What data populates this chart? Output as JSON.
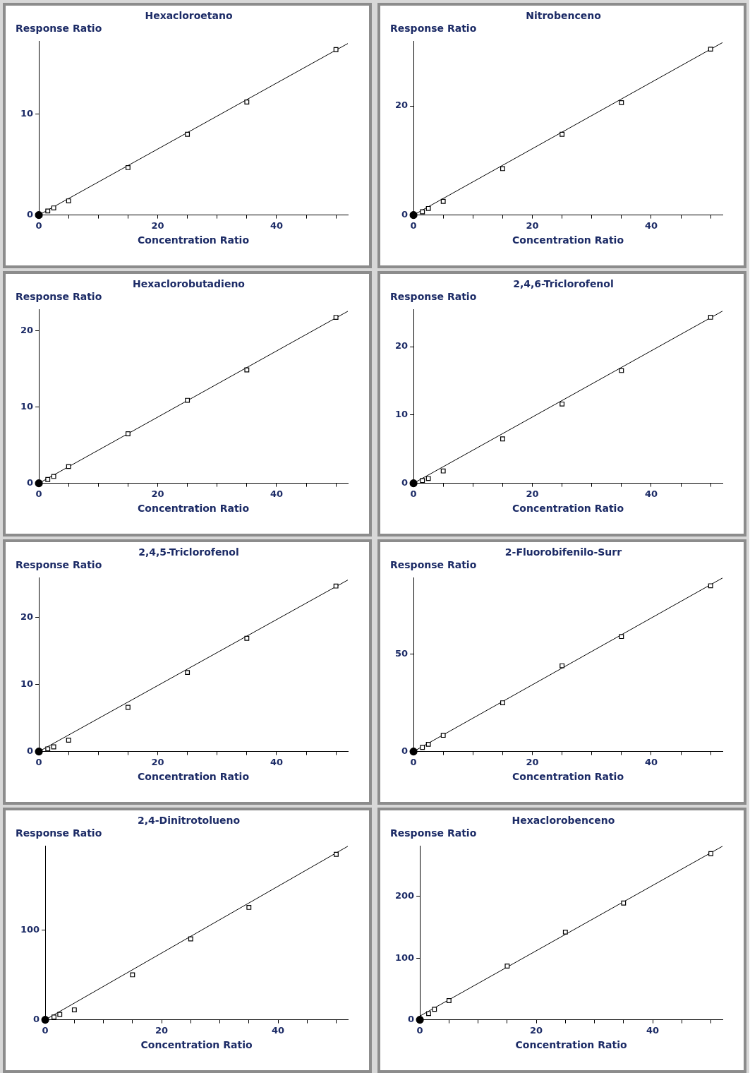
{
  "chart_data": [
    {
      "type": "scatter",
      "title": "Hexacloroetano",
      "xlabel": "Concentration Ratio",
      "ylabel": "Response Ratio",
      "xlim": [
        0,
        52
      ],
      "ylim": [
        0,
        17.2
      ],
      "xticks": [
        0,
        {
          "value": 5,
          "label": null
        },
        {
          "value": 10,
          "label": null
        },
        {
          "value": 15,
          "label": null
        },
        20,
        {
          "value": 25,
          "label": null
        },
        {
          "value": 30,
          "label": null
        },
        {
          "value": 35,
          "label": null
        },
        40,
        {
          "value": 45,
          "label": null
        },
        {
          "value": 50,
          "label": null
        }
      ],
      "yticks": [
        0,
        10
      ],
      "series": [
        {
          "type": "scatter",
          "marker": "square",
          "color": "#000000",
          "x": [
            1.5,
            2.5,
            5,
            15,
            25,
            35,
            50
          ],
          "values": [
            0.4,
            0.7,
            1.4,
            4.7,
            8.0,
            11.2,
            16.4
          ]
        },
        {
          "type": "line",
          "marker": "none",
          "color": "#000000",
          "x": [
            0,
            52
          ],
          "values": [
            0,
            17.0
          ]
        },
        {
          "type": "scatter",
          "marker": "circle",
          "color": "#000000",
          "x": [
            0
          ],
          "values": [
            0
          ]
        }
      ]
    },
    {
      "type": "scatter",
      "title": "Nitrobenceno",
      "xlabel": "Concentration Ratio",
      "ylabel": "Response Ratio",
      "xlim": [
        0,
        52
      ],
      "ylim": [
        0,
        31.8
      ],
      "xticks": [
        0,
        {
          "value": 5,
          "label": null
        },
        {
          "value": 10,
          "label": null
        },
        {
          "value": 15,
          "label": null
        },
        20,
        {
          "value": 25,
          "label": null
        },
        {
          "value": 30,
          "label": null
        },
        {
          "value": 35,
          "label": null
        },
        40,
        {
          "value": 45,
          "label": null
        },
        {
          "value": 50,
          "label": null
        }
      ],
      "yticks": [
        0,
        20
      ],
      "series": [
        {
          "type": "scatter",
          "marker": "square",
          "color": "#000000",
          "x": [
            1.5,
            2.5,
            5,
            15,
            25,
            35,
            50
          ],
          "values": [
            0.6,
            1.2,
            2.5,
            8.5,
            14.8,
            20.6,
            30.4
          ]
        },
        {
          "type": "line",
          "marker": "none",
          "color": "#000000",
          "x": [
            0,
            52
          ],
          "values": [
            0,
            31.6
          ]
        },
        {
          "type": "scatter",
          "marker": "circle",
          "color": "#000000",
          "x": [
            0
          ],
          "values": [
            0
          ]
        }
      ]
    },
    {
      "type": "scatter",
      "title": "Hexaclorobutadieno",
      "xlabel": "Concentration Ratio",
      "ylabel": "Response Ratio",
      "xlim": [
        0,
        52
      ],
      "ylim": [
        0,
        22.8
      ],
      "xticks": [
        0,
        {
          "value": 5,
          "label": null
        },
        {
          "value": 10,
          "label": null
        },
        {
          "value": 15,
          "label": null
        },
        20,
        {
          "value": 25,
          "label": null
        },
        {
          "value": 30,
          "label": null
        },
        {
          "value": 35,
          "label": null
        },
        40,
        {
          "value": 45,
          "label": null
        },
        {
          "value": 50,
          "label": null
        }
      ],
      "yticks": [
        0,
        10,
        20
      ],
      "series": [
        {
          "type": "scatter",
          "marker": "square",
          "color": "#000000",
          "x": [
            1.5,
            2.5,
            5,
            15,
            25,
            35,
            50
          ],
          "values": [
            0.5,
            0.9,
            2.2,
            6.5,
            10.9,
            14.9,
            21.8
          ]
        },
        {
          "type": "line",
          "marker": "none",
          "color": "#000000",
          "x": [
            0,
            52
          ],
          "values": [
            0,
            22.6
          ]
        },
        {
          "type": "scatter",
          "marker": "circle",
          "color": "#000000",
          "x": [
            0
          ],
          "values": [
            0
          ]
        }
      ]
    },
    {
      "type": "scatter",
      "title": "2,4,6-Triclorofenol",
      "xlabel": "Concentration Ratio",
      "ylabel": "Response Ratio",
      "xlim": [
        0,
        52
      ],
      "ylim": [
        0,
        25.4
      ],
      "xticks": [
        0,
        {
          "value": 5,
          "label": null
        },
        {
          "value": 10,
          "label": null
        },
        {
          "value": 15,
          "label": null
        },
        20,
        {
          "value": 25,
          "label": null
        },
        {
          "value": 30,
          "label": null
        },
        {
          "value": 35,
          "label": null
        },
        40,
        {
          "value": 45,
          "label": null
        },
        {
          "value": 50,
          "label": null
        }
      ],
      "yticks": [
        0,
        10,
        20
      ],
      "series": [
        {
          "type": "scatter",
          "marker": "square",
          "color": "#000000",
          "x": [
            1.5,
            2.5,
            5,
            15,
            25,
            35,
            50
          ],
          "values": [
            0.4,
            0.7,
            1.8,
            6.5,
            11.6,
            16.5,
            24.3
          ]
        },
        {
          "type": "line",
          "marker": "none",
          "color": "#000000",
          "x": [
            0,
            52
          ],
          "values": [
            0,
            25.2
          ]
        },
        {
          "type": "scatter",
          "marker": "circle",
          "color": "#000000",
          "x": [
            0
          ],
          "values": [
            0
          ]
        }
      ]
    },
    {
      "type": "scatter",
      "title": "2,4,5-Triclorofenol",
      "xlabel": "Concentration Ratio",
      "ylabel": "Response Ratio",
      "xlim": [
        0,
        52
      ],
      "ylim": [
        0,
        25.9
      ],
      "xticks": [
        0,
        {
          "value": 5,
          "label": null
        },
        {
          "value": 10,
          "label": null
        },
        {
          "value": 15,
          "label": null
        },
        20,
        {
          "value": 25,
          "label": null
        },
        {
          "value": 30,
          "label": null
        },
        {
          "value": 35,
          "label": null
        },
        40,
        {
          "value": 45,
          "label": null
        },
        {
          "value": 50,
          "label": null
        }
      ],
      "yticks": [
        0,
        10,
        20
      ],
      "series": [
        {
          "type": "scatter",
          "marker": "square",
          "color": "#000000",
          "x": [
            1.5,
            2.5,
            5,
            15,
            25,
            35,
            50
          ],
          "values": [
            0.4,
            0.7,
            1.7,
            6.6,
            11.8,
            16.9,
            24.7
          ]
        },
        {
          "type": "line",
          "marker": "none",
          "color": "#000000",
          "x": [
            0,
            52
          ],
          "values": [
            0,
            25.6
          ]
        },
        {
          "type": "scatter",
          "marker": "circle",
          "color": "#000000",
          "x": [
            0
          ],
          "values": [
            0
          ]
        }
      ]
    },
    {
      "type": "scatter",
      "title": "2-Fluorobifenilo-Surr",
      "xlabel": "Concentration Ratio",
      "ylabel": "Response Ratio",
      "xlim": [
        0,
        52
      ],
      "ylim": [
        0,
        89
      ],
      "xticks": [
        0,
        {
          "value": 5,
          "label": null
        },
        {
          "value": 10,
          "label": null
        },
        {
          "value": 15,
          "label": null
        },
        20,
        {
          "value": 25,
          "label": null
        },
        {
          "value": 30,
          "label": null
        },
        {
          "value": 35,
          "label": null
        },
        40,
        {
          "value": 45,
          "label": null
        },
        {
          "value": 50,
          "label": null
        }
      ],
      "yticks": [
        0,
        50
      ],
      "series": [
        {
          "type": "scatter",
          "marker": "square",
          "color": "#000000",
          "x": [
            1.5,
            2.5,
            5,
            15,
            25,
            35,
            50
          ],
          "values": [
            2.1,
            3.7,
            8.3,
            25,
            44,
            59,
            85
          ]
        },
        {
          "type": "line",
          "marker": "none",
          "color": "#000000",
          "x": [
            0,
            52
          ],
          "values": [
            0,
            89
          ]
        },
        {
          "type": "scatter",
          "marker": "circle",
          "color": "#000000",
          "x": [
            0
          ],
          "values": [
            0
          ]
        }
      ]
    },
    {
      "type": "scatter",
      "title": "2,4-Dinitrotolueno",
      "xlabel": "Concentration Ratio",
      "ylabel": "Response Ratio",
      "xlim": [
        0,
        52
      ],
      "ylim": [
        0,
        193
      ],
      "xticks": [
        0,
        {
          "value": 5,
          "label": null
        },
        {
          "value": 10,
          "label": null
        },
        {
          "value": 15,
          "label": null
        },
        20,
        {
          "value": 25,
          "label": null
        },
        {
          "value": 30,
          "label": null
        },
        {
          "value": 35,
          "label": null
        },
        40,
        {
          "value": 45,
          "label": null
        },
        {
          "value": 50,
          "label": null
        }
      ],
      "yticks": [
        0,
        100
      ],
      "series": [
        {
          "type": "scatter",
          "marker": "square",
          "color": "#000000",
          "x": [
            1.5,
            2.5,
            5,
            15,
            25,
            35,
            50
          ],
          "values": [
            3,
            6,
            11,
            50,
            90,
            125,
            184
          ]
        },
        {
          "type": "line",
          "marker": "none",
          "color": "#000000",
          "x": [
            0,
            52
          ],
          "values": [
            0,
            193
          ]
        },
        {
          "type": "scatter",
          "marker": "circle",
          "color": "#000000",
          "x": [
            0
          ],
          "values": [
            0
          ]
        }
      ]
    },
    {
      "type": "scatter",
      "title": "Hexaclorobenceno",
      "xlabel": "Concentration Ratio",
      "ylabel": "Response Ratio",
      "xlim": [
        0,
        52
      ],
      "ylim": [
        0,
        281
      ],
      "xticks": [
        0,
        {
          "value": 5,
          "label": null
        },
        {
          "value": 10,
          "label": null
        },
        {
          "value": 15,
          "label": null
        },
        20,
        {
          "value": 25,
          "label": null
        },
        {
          "value": 30,
          "label": null
        },
        {
          "value": 35,
          "label": null
        },
        40,
        {
          "value": 45,
          "label": null
        },
        {
          "value": 50,
          "label": null
        }
      ],
      "yticks": [
        0,
        100,
        200
      ],
      "series": [
        {
          "type": "scatter",
          "marker": "square",
          "color": "#000000",
          "x": [
            1.5,
            2.5,
            5,
            15,
            25,
            35,
            50
          ],
          "values": [
            10,
            17,
            31,
            87,
            142,
            189,
            269
          ]
        },
        {
          "type": "line",
          "marker": "none",
          "color": "#000000",
          "x": [
            0,
            52
          ],
          "values": [
            6,
            281
          ]
        },
        {
          "type": "scatter",
          "marker": "circle",
          "color": "#000000",
          "x": [
            0
          ],
          "values": [
            0
          ]
        }
      ]
    }
  ]
}
